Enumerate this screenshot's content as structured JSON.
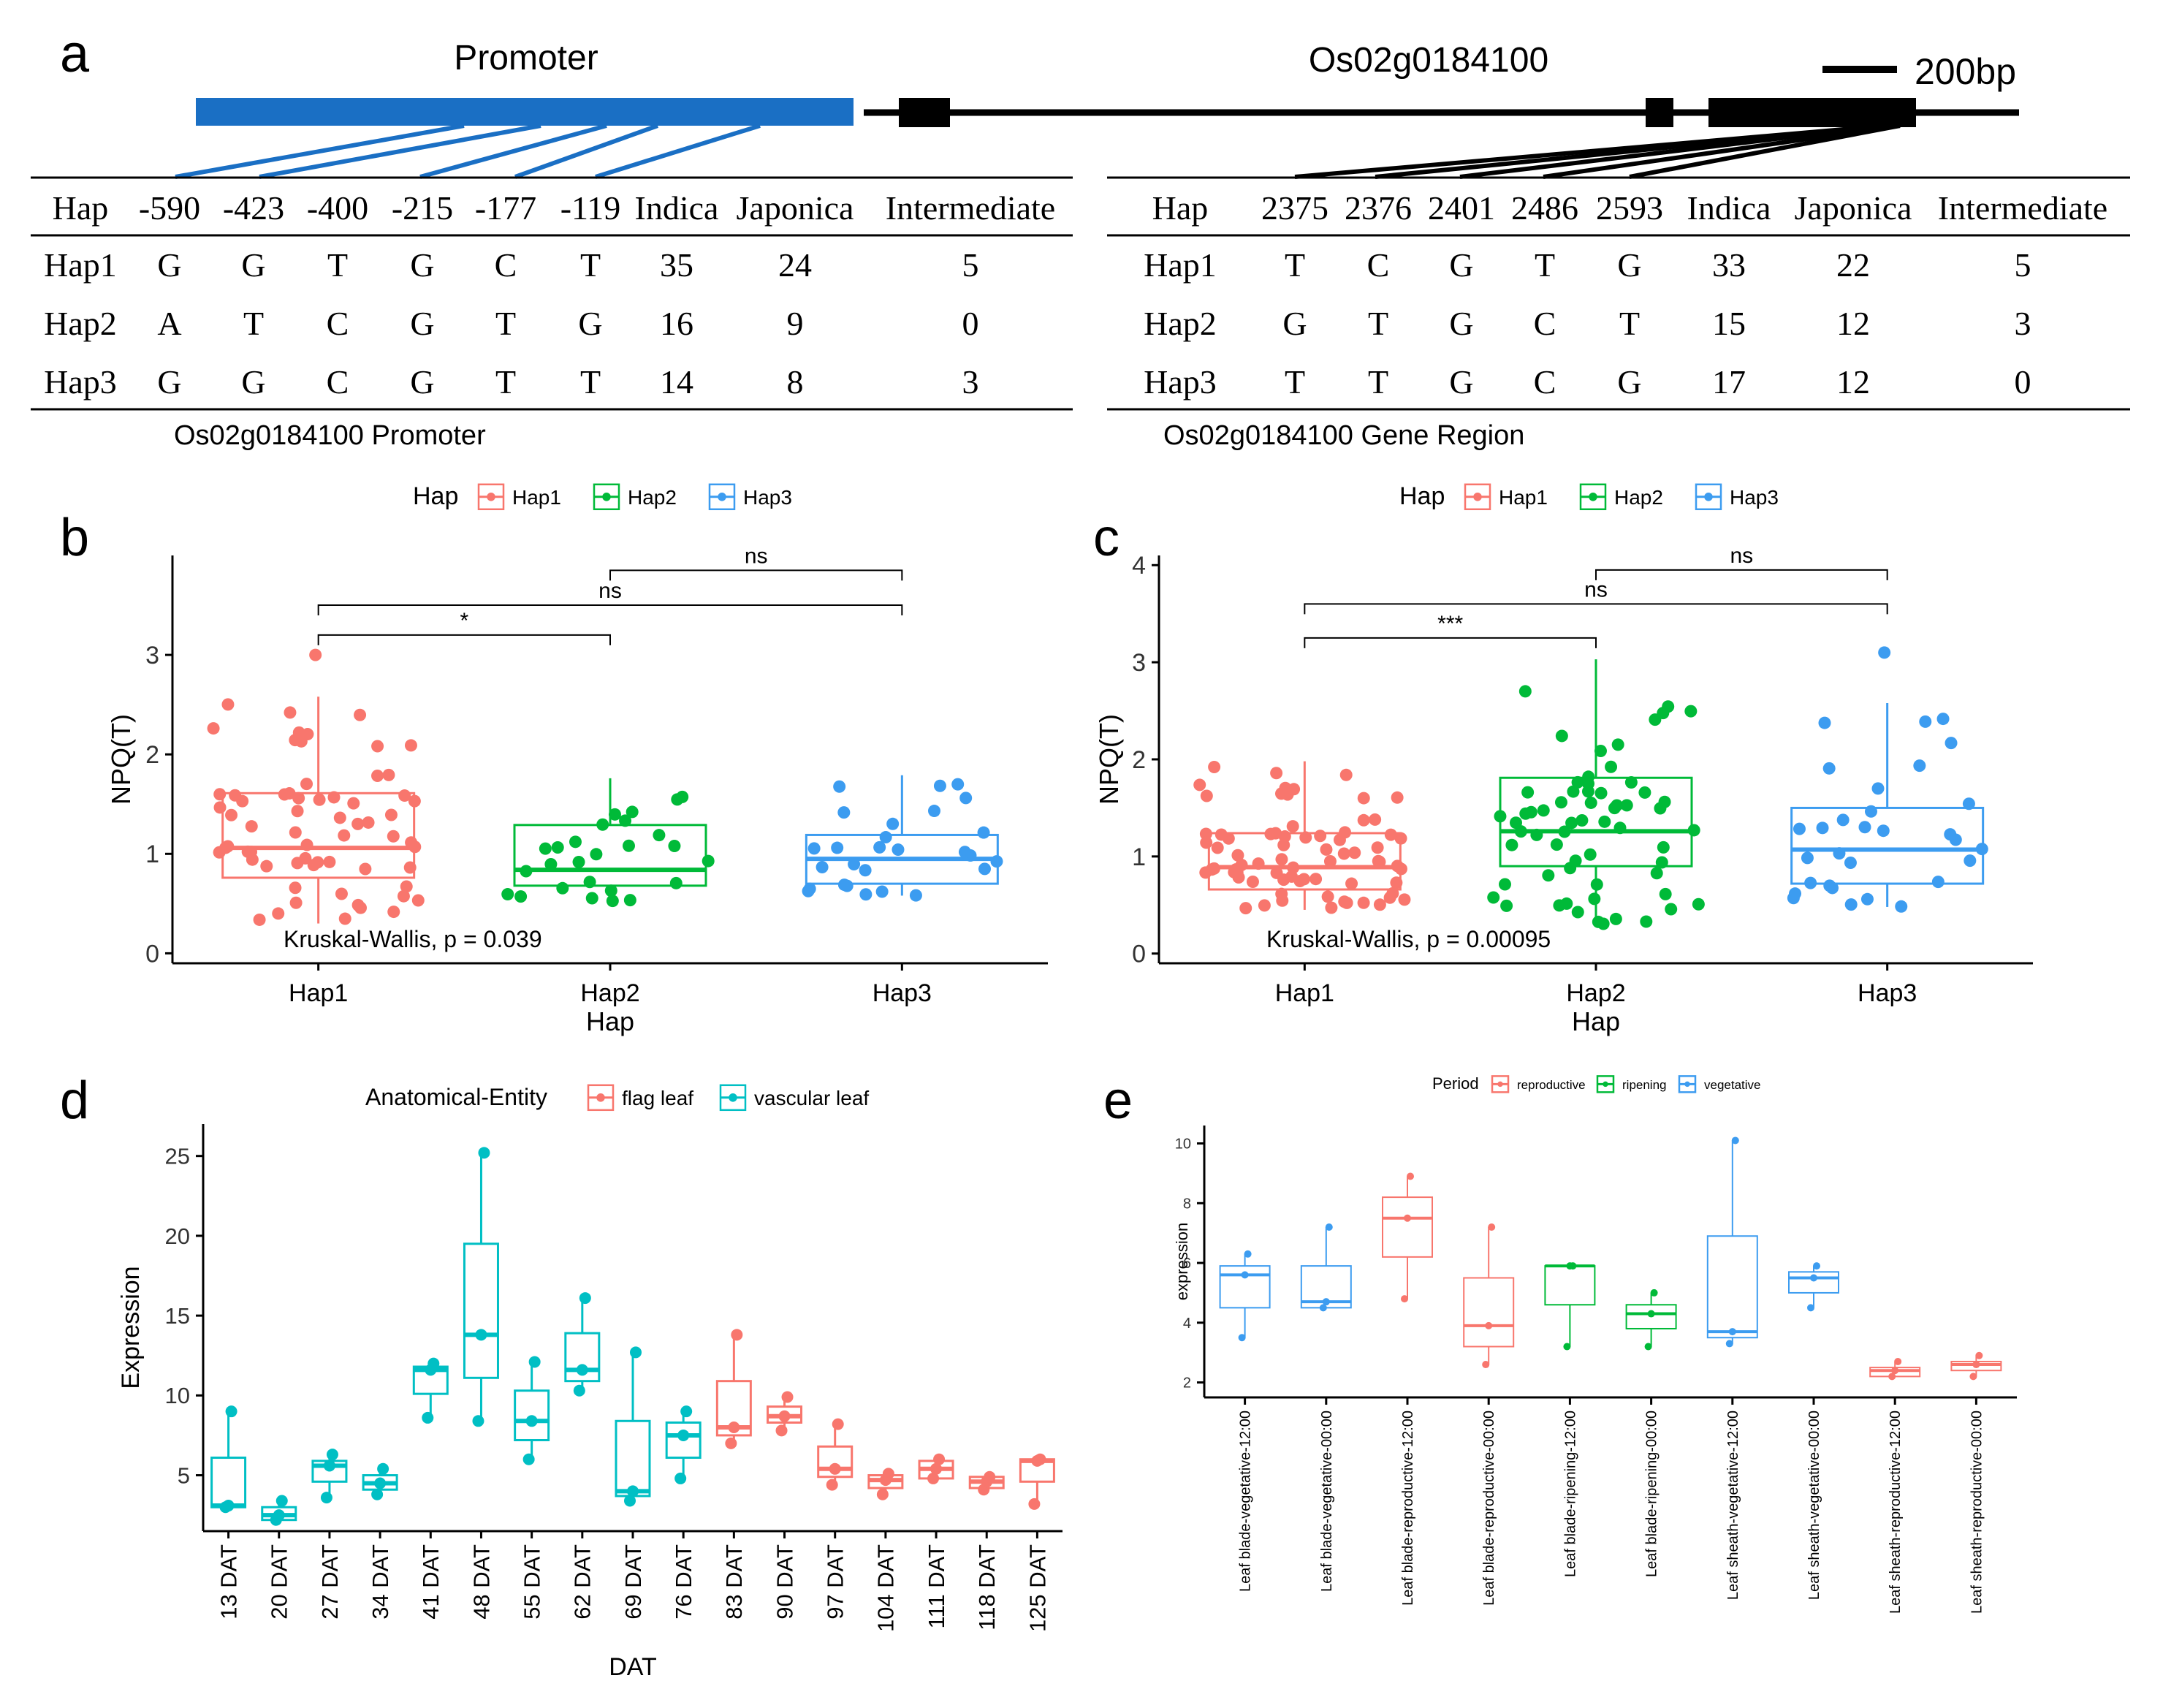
{
  "panel_labels": {
    "a": "a",
    "b": "b",
    "c": "c",
    "d": "d",
    "e": "e"
  },
  "colors": {
    "blue_gene": "#1a6fc4",
    "hap1": "#f8766d",
    "hap2": "#00ba38",
    "hap3": "#3c9cf0",
    "flag_leaf": "#f8766d",
    "vascular_leaf": "#00bfc4",
    "reproductive": "#f8766d",
    "ripening": "#00ba38",
    "vegetative": "#3c9cf0"
  },
  "panel_a": {
    "promoter_label": "Promoter",
    "gene_label": "Os02g0184100",
    "scale_label": "200bp",
    "left_table": {
      "caption": "Os02g0184100 Promoter",
      "headers": [
        "Hap",
        "-590",
        "-423",
        "-400",
        "-215",
        "-177",
        "-119",
        "Indica",
        "Japonica",
        "Intermediate"
      ],
      "rows": [
        [
          "Hap1",
          "G",
          "G",
          "T",
          "G",
          "C",
          "T",
          "35",
          "24",
          "5"
        ],
        [
          "Hap2",
          "A",
          "T",
          "C",
          "G",
          "T",
          "G",
          "16",
          "9",
          "0"
        ],
        [
          "Hap3",
          "G",
          "G",
          "C",
          "G",
          "T",
          "T",
          "14",
          "8",
          "3"
        ]
      ]
    },
    "right_table": {
      "caption": "Os02g0184100 Gene Region",
      "headers": [
        "Hap",
        "2375",
        "2376",
        "2401",
        "2486",
        "2593",
        "Indica",
        "Japonica",
        "Intermediate"
      ],
      "rows": [
        [
          "Hap1",
          "T",
          "C",
          "G",
          "T",
          "G",
          "33",
          "22",
          "5"
        ],
        [
          "Hap2",
          "G",
          "T",
          "G",
          "C",
          "T",
          "15",
          "12",
          "3"
        ],
        [
          "Hap3",
          "T",
          "T",
          "G",
          "C",
          "G",
          "17",
          "12",
          "0"
        ]
      ]
    }
  },
  "chart_data": [
    {
      "panel": "b",
      "type": "box",
      "xlabel": "Hap",
      "ylabel": "NPQ(T)",
      "ylim": [
        -0.1,
        4.0
      ],
      "yticks": [
        0,
        1,
        2,
        3
      ],
      "legend": {
        "title": "Hap",
        "entries": [
          "Hap1",
          "Hap2",
          "Hap3"
        ]
      },
      "categories": [
        "Hap1",
        "Hap2",
        "Hap3"
      ],
      "boxes": [
        {
          "q1": 0.76,
          "median": 1.06,
          "q3": 1.61,
          "whisker_low": 0.3,
          "whisker_high": 2.58
        },
        {
          "q1": 0.68,
          "median": 0.84,
          "q3": 1.29,
          "whisker_low": 0.52,
          "whisker_high": 1.76
        },
        {
          "q1": 0.7,
          "median": 0.95,
          "q3": 1.19,
          "whisker_low": 0.58,
          "whisker_high": 1.79
        }
      ],
      "outliers": [
        [
          3.0
        ],
        [],
        []
      ],
      "brackets": [
        {
          "from": 0,
          "to": 1,
          "y": 3.2,
          "label": "*"
        },
        {
          "from": 0,
          "to": 2,
          "y": 3.5,
          "label": "ns"
        },
        {
          "from": 1,
          "to": 2,
          "y": 3.85,
          "label": "ns"
        }
      ],
      "test_label": "Kruskal-Wallis, p = 0.039"
    },
    {
      "panel": "c",
      "type": "box",
      "xlabel": "Hap",
      "ylabel": "NPQ(T)",
      "ylim": [
        -0.1,
        4.1
      ],
      "yticks": [
        0,
        1,
        2,
        3,
        4
      ],
      "legend": {
        "title": "Hap",
        "entries": [
          "Hap1",
          "Hap2",
          "Hap3"
        ]
      },
      "categories": [
        "Hap1",
        "Hap2",
        "Hap3"
      ],
      "boxes": [
        {
          "q1": 0.66,
          "median": 0.89,
          "q3": 1.24,
          "whisker_low": 0.45,
          "whisker_high": 1.98
        },
        {
          "q1": 0.9,
          "median": 1.26,
          "q3": 1.81,
          "whisker_low": 0.3,
          "whisker_high": 3.03
        },
        {
          "q1": 0.72,
          "median": 1.07,
          "q3": 1.5,
          "whisker_low": 0.48,
          "whisker_high": 2.58
        }
      ],
      "outliers": [
        [],
        [],
        [
          3.1
        ]
      ],
      "brackets": [
        {
          "from": 0,
          "to": 1,
          "y": 3.25,
          "label": "***"
        },
        {
          "from": 0,
          "to": 2,
          "y": 3.6,
          "label": "ns"
        },
        {
          "from": 1,
          "to": 2,
          "y": 3.95,
          "label": "ns"
        }
      ],
      "test_label": "Kruskal-Wallis, p = 0.00095"
    },
    {
      "panel": "d",
      "type": "box",
      "xlabel": "DAT",
      "ylabel": "Expression",
      "ylim": [
        1.5,
        27
      ],
      "yticks": [
        5,
        10,
        15,
        20,
        25
      ],
      "legend": {
        "title": "Anatomical-Entity",
        "entries": [
          "flag leaf",
          "vascular leaf"
        ]
      },
      "categories": [
        "13 DAT",
        "20 DAT",
        "27 DAT",
        "34 DAT",
        "41 DAT",
        "48 DAT",
        "55 DAT",
        "62 DAT",
        "69 DAT",
        "76 DAT",
        "83 DAT",
        "90 DAT",
        "97 DAT",
        "104 DAT",
        "111 DAT",
        "118 DAT",
        "125 DAT"
      ],
      "groups": [
        "vascular leaf",
        "vascular leaf",
        "vascular leaf",
        "vascular leaf",
        "vascular leaf",
        "vascular leaf",
        "vascular leaf",
        "vascular leaf",
        "vascular leaf",
        "vascular leaf",
        "flag leaf",
        "flag leaf",
        "flag leaf",
        "flag leaf",
        "flag leaf",
        "flag leaf",
        "flag leaf"
      ],
      "boxes": [
        {
          "q1": 3.0,
          "median": 3.1,
          "q3": 6.1,
          "min": 3.0,
          "max": 9.0
        },
        {
          "q1": 2.2,
          "median": 2.5,
          "q3": 3.0,
          "min": 2.2,
          "max": 3.4
        },
        {
          "q1": 4.6,
          "median": 5.6,
          "q3": 5.9,
          "min": 3.6,
          "max": 6.3
        },
        {
          "q1": 4.1,
          "median": 4.5,
          "q3": 5.0,
          "min": 3.8,
          "max": 5.4
        },
        {
          "q1": 10.1,
          "median": 11.6,
          "q3": 11.8,
          "min": 8.6,
          "max": 12.0
        },
        {
          "q1": 11.1,
          "median": 13.8,
          "q3": 19.5,
          "min": 8.4,
          "max": 25.2
        },
        {
          "q1": 7.2,
          "median": 8.4,
          "q3": 10.3,
          "min": 6.0,
          "max": 12.1
        },
        {
          "q1": 10.9,
          "median": 11.6,
          "q3": 13.9,
          "min": 10.3,
          "max": 16.1
        },
        {
          "q1": 3.7,
          "median": 4.0,
          "q3": 8.4,
          "min": 3.4,
          "max": 12.7
        },
        {
          "q1": 6.1,
          "median": 7.5,
          "q3": 8.3,
          "min": 4.8,
          "max": 9.0
        },
        {
          "q1": 7.5,
          "median": 8.0,
          "q3": 10.9,
          "min": 7.0,
          "max": 13.8
        },
        {
          "q1": 8.3,
          "median": 8.7,
          "q3": 9.3,
          "min": 7.8,
          "max": 9.9
        },
        {
          "q1": 4.9,
          "median": 5.4,
          "q3": 6.8,
          "min": 4.4,
          "max": 8.2
        },
        {
          "q1": 4.2,
          "median": 4.7,
          "q3": 5.0,
          "min": 3.8,
          "max": 5.1
        },
        {
          "q1": 4.8,
          "median": 5.4,
          "q3": 5.9,
          "min": 4.8,
          "max": 6.0
        },
        {
          "q1": 4.2,
          "median": 4.6,
          "q3": 4.9,
          "min": 4.1,
          "max": 4.9
        },
        {
          "q1": 4.6,
          "median": 5.9,
          "q3": 6.0,
          "min": 3.2,
          "max": 6.0
        }
      ]
    },
    {
      "panel": "e",
      "type": "box",
      "xlabel": "",
      "ylabel": "expression",
      "ylim": [
        1.5,
        10.6
      ],
      "yticks": [
        2,
        4,
        6,
        8,
        10
      ],
      "legend": {
        "title": "Period",
        "entries": [
          "reproductive",
          "ripening",
          "vegetative"
        ]
      },
      "categories": [
        "Leaf blade-vegetative-12:00",
        "Leaf blade-vegetative-00:00",
        "Leaf blade-reproductive-12:00",
        "Leaf blade-reproductive-00:00",
        "Leaf blade-ripening-12:00",
        "Leaf blade-ripening-00:00",
        "Leaf sheath-vegetative-12:00",
        "Leaf sheath-vegetative-00:00",
        "Leaf sheath-reproductive-12:00",
        "Leaf sheath-reproductive-00:00"
      ],
      "groups": [
        "vegetative",
        "vegetative",
        "reproductive",
        "reproductive",
        "ripening",
        "ripening",
        "vegetative",
        "vegetative",
        "reproductive",
        "reproductive"
      ],
      "boxes": [
        {
          "q1": 4.5,
          "median": 5.6,
          "q3": 5.9,
          "min": 3.5,
          "max": 6.3
        },
        {
          "q1": 4.5,
          "median": 4.7,
          "q3": 5.9,
          "min": 4.5,
          "max": 7.2
        },
        {
          "q1": 6.2,
          "median": 7.5,
          "q3": 8.2,
          "min": 4.8,
          "max": 8.9
        },
        {
          "q1": 3.2,
          "median": 3.9,
          "q3": 5.5,
          "min": 2.6,
          "max": 7.2
        },
        {
          "q1": 4.6,
          "median": 5.9,
          "q3": 5.9,
          "min": 3.2,
          "max": 5.9
        },
        {
          "q1": 3.8,
          "median": 4.3,
          "q3": 4.6,
          "min": 3.2,
          "max": 5.0
        },
        {
          "q1": 3.5,
          "median": 3.7,
          "q3": 6.9,
          "min": 3.3,
          "max": 10.1
        },
        {
          "q1": 5.0,
          "median": 5.5,
          "q3": 5.7,
          "min": 4.5,
          "max": 5.9
        },
        {
          "q1": 2.2,
          "median": 2.4,
          "q3": 2.5,
          "min": 2.2,
          "max": 2.7
        },
        {
          "q1": 2.4,
          "median": 2.6,
          "q3": 2.7,
          "min": 2.2,
          "max": 2.9
        }
      ]
    }
  ]
}
